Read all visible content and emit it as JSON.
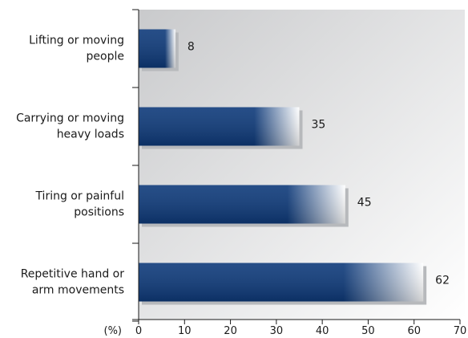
{
  "chart_data": {
    "type": "bar",
    "orientation": "horizontal",
    "categories": [
      [
        "Lifting or moving",
        "people"
      ],
      [
        "Carrying or moving",
        "heavy loads"
      ],
      [
        "Tiring or painful",
        "positions"
      ],
      [
        "Repetitive hand or",
        "arm movements"
      ]
    ],
    "values": [
      8,
      35,
      45,
      62
    ],
    "data_labels": [
      "8",
      "35",
      "45",
      "62"
    ],
    "xlim": [
      0,
      70
    ],
    "xticks": [
      0,
      10,
      20,
      30,
      40,
      50,
      60,
      70
    ],
    "x_unit_label": "(%)",
    "grid": false,
    "legend": "none",
    "colors": {
      "bar_dark": "#0e3a7a",
      "bar_light": "#ffffff",
      "bar_shadow": "#b7b9bc",
      "plot_bg_dark": "#c9cacc",
      "plot_bg_light": "#ffffff",
      "axis": "#1a1a1a"
    }
  }
}
